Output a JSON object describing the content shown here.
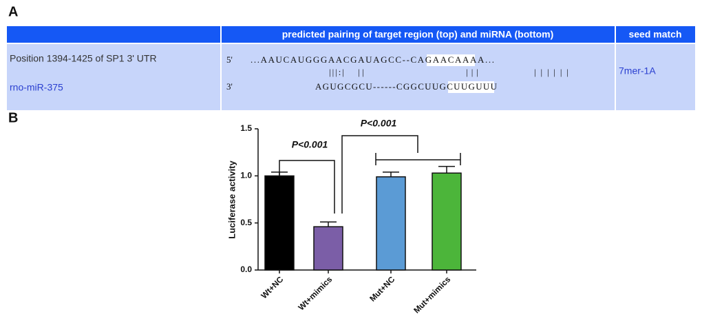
{
  "panel_labels": [
    "A",
    "B"
  ],
  "table": {
    "header": {
      "pairing": "predicted pairing of target region (top) and miRNA (bottom)",
      "seed": "seed match"
    },
    "row": {
      "site": "Position 1394-1425 of SP1 3' UTR",
      "mirna": "rno-miR-375",
      "target_end": "5'",
      "target": "...AAUCAUGGGAACGAUAGCC--CAGAACAAAA...",
      "pairs": [
        "|||:|",
        "||",
        "|||",
        "||||||"
      ],
      "mirna_end": "3'",
      "mirna_seq": "AGUGCGCU------CGGCUUGCUUGUUU",
      "seed_match": "7mer-1A"
    }
  },
  "chart_data": {
    "type": "bar",
    "ylabel": "Luciferase activity",
    "categories": [
      "Wt+NC",
      "Wt+mimics",
      "Mut+NC",
      "Mut+mimics"
    ],
    "values": [
      1.0,
      0.46,
      0.99,
      1.03
    ],
    "errors": [
      0.04,
      0.05,
      0.05,
      0.07
    ],
    "colors": [
      "#000000",
      "#7b5ea7",
      "#5b9bd5",
      "#4cb53a"
    ],
    "ylim": [
      0,
      1.5
    ],
    "yticks": [
      {
        "value": 0,
        "label": "0.0"
      },
      {
        "value": 0.5,
        "label": "0.5"
      },
      {
        "value": 1,
        "label": "1.0"
      },
      {
        "value": 1.5,
        "label": "1.5"
      }
    ],
    "annotations": [
      "P<0.001",
      "P<0.001"
    ]
  }
}
